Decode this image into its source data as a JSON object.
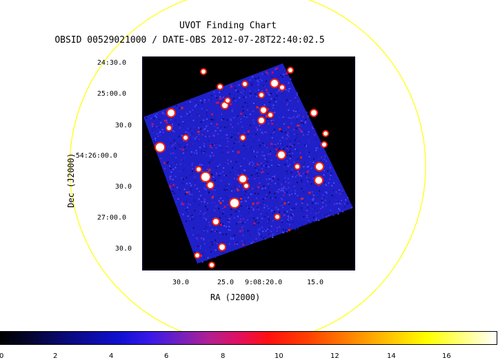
{
  "title": "UVOT Finding Chart",
  "subtitle": "OBSID 00529021000 / DATE-OBS 2012-07-28T22:40:02.5",
  "ylabel": "Dec (J2000)",
  "xlabel": "RA (J2000)",
  "y_ticks": [
    "24:30.0",
    "25:00.0",
    "30.0",
    "-54:26:00.0",
    "30.0",
    "27:00.0",
    "30.0"
  ],
  "x_ticks": [
    "30.0",
    "25.0",
    "9:08:20.0",
    "15.0"
  ],
  "colorbar_ticks": [
    "0",
    "2",
    "4",
    "6",
    "8",
    "10",
    "12",
    "14",
    "16"
  ],
  "colors": {
    "circle": "#ffff00",
    "frame_bg": "#000000",
    "noise": "#2020c8",
    "star_hot": "#ffffff",
    "star_warm": "#ff2000"
  }
}
